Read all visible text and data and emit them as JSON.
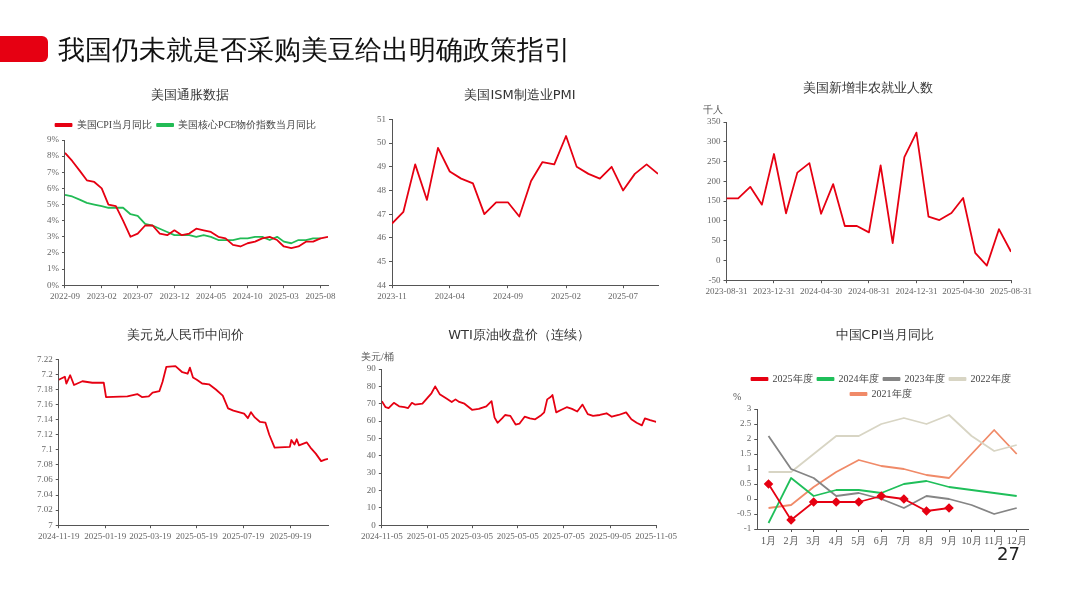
{
  "chart_data": [
    {
      "type": "other",
      "title": "我国仍未就是否采购美豆给出明确政策指引",
      "annotations": [
        "27"
      ]
    },
    {
      "type": "line",
      "title": "美国通胀数据",
      "legend": "top",
      "x": [
        "2022-09",
        "2022-10",
        "2022-11",
        "2022-12",
        "2023-01",
        "2023-02",
        "2023-03",
        "2023-04",
        "2023-05",
        "2023-06",
        "2023-07",
        "2023-08",
        "2023-09",
        "2023-10",
        "2023-11",
        "2023-12",
        "2024-01",
        "2024-02",
        "2024-03",
        "2024-04",
        "2024-05",
        "2024-06",
        "2024-07",
        "2024-08",
        "2024-09",
        "2024-10",
        "2024-11",
        "2024-12",
        "2025-01",
        "2025-02",
        "2025-03",
        "2025-04",
        "2025-05",
        "2025-06",
        "2025-07",
        "2025-08",
        "2025-09"
      ],
      "xlim": [
        "2022-09",
        "2025-09"
      ],
      "xticks": [
        "2022-09",
        "2023-02",
        "2023-07",
        "2023-12",
        "2024-05",
        "2024-10",
        "2025-03",
        "2025-08"
      ],
      "ylim": [
        0,
        9
      ],
      "yticks": [
        {
          "value": 0,
          "label": "0%"
        },
        {
          "value": 1,
          "label": "1%"
        },
        {
          "value": 2,
          "label": "2%"
        },
        {
          "value": 3,
          "label": "3%"
        },
        {
          "value": 4,
          "label": "4%"
        },
        {
          "value": 5,
          "label": "5%"
        },
        {
          "value": 6,
          "label": "6%"
        },
        {
          "value": 7,
          "label": "7%"
        },
        {
          "value": 8,
          "label": "8%"
        },
        {
          "value": 9,
          "label": "9%"
        }
      ],
      "series": [
        {
          "name": "美国CPI当月同比",
          "color": "#e60012",
          "values": [
            8.2,
            7.7,
            7.1,
            6.5,
            6.4,
            6.0,
            5.0,
            4.9,
            4.0,
            3.0,
            3.2,
            3.7,
            3.7,
            3.2,
            3.1,
            3.4,
            3.1,
            3.2,
            3.5,
            3.4,
            3.3,
            3.0,
            2.9,
            2.5,
            2.4,
            2.6,
            2.7,
            2.9,
            3.0,
            2.8,
            2.4,
            2.3,
            2.4,
            2.7,
            2.7,
            2.9,
            3.0
          ]
        },
        {
          "name": "美国核心PCE物价指数当月同比",
          "color": "#22bb55",
          "values": [
            5.6,
            5.5,
            5.3,
            5.1,
            5.0,
            4.9,
            4.8,
            4.8,
            4.8,
            4.4,
            4.3,
            3.8,
            3.7,
            3.5,
            3.3,
            3.1,
            3.1,
            3.1,
            3.0,
            3.1,
            3.0,
            2.8,
            2.8,
            2.8,
            2.9,
            2.9,
            3.0,
            3.0,
            2.8,
            3.0,
            2.7,
            2.6,
            2.8,
            2.8,
            2.9,
            2.9,
            null
          ]
        }
      ]
    },
    {
      "type": "line",
      "title": "美国ISM制造业PMI",
      "x": [
        "2023-11",
        "2023-12",
        "2024-01",
        "2024-02",
        "2024-03",
        "2024-04",
        "2024-05",
        "2024-06",
        "2024-07",
        "2024-08",
        "2024-09",
        "2024-10",
        "2024-11",
        "2024-12",
        "2025-01",
        "2025-02",
        "2025-03",
        "2025-04",
        "2025-05",
        "2025-06",
        "2025-07",
        "2025-08",
        "2025-09",
        "2025-10"
      ],
      "xlim": [
        "2023-11",
        "2025-10"
      ],
      "xticks": [
        "2023-11",
        "2024-04",
        "2024-09",
        "2025-02",
        "2025-07"
      ],
      "ylim": [
        44,
        51
      ],
      "yticks": [
        44,
        45,
        46,
        47,
        48,
        49,
        50,
        51
      ],
      "color": "#e60012",
      "values": [
        46.6,
        47.1,
        49.1,
        47.6,
        49.8,
        48.8,
        48.5,
        48.3,
        47.0,
        47.5,
        47.5,
        46.9,
        48.4,
        49.2,
        49.1,
        50.3,
        49.0,
        48.7,
        48.5,
        49.0,
        48.0,
        48.7,
        49.1,
        48.7
      ]
    },
    {
      "type": "line",
      "title": "美国新增非农就业人数",
      "ylabel": "千人",
      "x": [
        "2023-08-31",
        "2023-09-30",
        "2023-10-31",
        "2023-11-30",
        "2023-12-31",
        "2024-01-31",
        "2024-02-29",
        "2024-03-31",
        "2024-04-30",
        "2024-05-31",
        "2024-06-30",
        "2024-07-31",
        "2024-08-31",
        "2024-09-30",
        "2024-10-31",
        "2024-11-30",
        "2024-12-31",
        "2025-01-31",
        "2025-02-28",
        "2025-03-31",
        "2025-04-30",
        "2025-05-31",
        "2025-06-30",
        "2025-07-31",
        "2025-08-31"
      ],
      "xlim": [
        "2023-08-31",
        "2025-08-31"
      ],
      "xticks": [
        "2023-08-31",
        "2023-12-31",
        "2024-04-30",
        "2024-08-31",
        "2024-12-31",
        "2025-04-30",
        "2025-08-31"
      ],
      "ylim": [
        -50,
        350
      ],
      "yticks": [
        -50,
        0,
        50,
        100,
        150,
        200,
        250,
        300,
        350
      ],
      "color": "#e60012",
      "values": [
        157,
        157,
        186,
        141,
        269,
        119,
        222,
        246,
        118,
        193,
        87,
        87,
        71,
        240,
        44,
        261,
        323,
        111,
        102,
        120,
        158,
        19,
        -13,
        79,
        22
      ]
    },
    {
      "type": "line",
      "title": "美元兑人民币中间价",
      "x": [
        "2024-11-19",
        "2024-11-27",
        "2024-11-29",
        "2024-12-04",
        "2024-12-09",
        "2024-12-20",
        "2025-01-02",
        "2025-01-17",
        "2025-01-20",
        "2025-02-17",
        "2025-03-02",
        "2025-03-08",
        "2025-03-17",
        "2025-03-22",
        "2025-03-31",
        "2025-04-04",
        "2025-04-09",
        "2025-04-21",
        "2025-04-30",
        "2025-05-07",
        "2025-05-10",
        "2025-05-14",
        "2025-05-19",
        "2025-05-26",
        "2025-06-04",
        "2025-06-13",
        "2025-06-22",
        "2025-06-29",
        "2025-07-06",
        "2025-07-13",
        "2025-07-20",
        "2025-07-25",
        "2025-07-29",
        "2025-08-03",
        "2025-08-10",
        "2025-08-17",
        "2025-08-22",
        "2025-08-29",
        "2025-09-18",
        "2025-09-20",
        "2025-09-24",
        "2025-09-27",
        "2025-09-30",
        "2025-10-10",
        "2025-10-15",
        "2025-10-22",
        "2025-10-29",
        "2025-11-03",
        "2025-11-07"
      ],
      "xlim": [
        "2024-11-19",
        "2025-11-07"
      ],
      "xticks": [
        "2024-11-19",
        "2025-01-19",
        "2025-03-19",
        "2025-05-19",
        "2025-07-19",
        "2025-09-19"
      ],
      "ylim": [
        7,
        7.22
      ],
      "yticks": [
        7,
        7.02,
        7.04,
        7.06,
        7.08,
        7.1,
        7.12,
        7.14,
        7.16,
        7.18,
        7.2,
        7.22
      ],
      "color": "#e60012",
      "values": [
        7.193,
        7.197,
        7.188,
        7.199,
        7.186,
        7.191,
        7.189,
        7.189,
        7.17,
        7.171,
        7.174,
        7.17,
        7.171,
        7.176,
        7.178,
        7.19,
        7.21,
        7.211,
        7.203,
        7.201,
        7.209,
        7.196,
        7.193,
        7.188,
        7.187,
        7.18,
        7.172,
        7.155,
        7.152,
        7.15,
        7.148,
        7.142,
        7.15,
        7.143,
        7.137,
        7.136,
        7.12,
        7.103,
        7.104,
        7.113,
        7.107,
        7.114,
        7.106,
        7.11,
        7.103,
        7.095,
        7.085,
        7.087,
        7.088
      ]
    },
    {
      "type": "line",
      "title": "WTI原油收盘价（连续）",
      "ylabel": "美元/桶",
      "x": [
        "2024-11-05",
        "2024-11-10",
        "2024-11-14",
        "2024-11-21",
        "2024-11-28",
        "2024-12-05",
        "2024-12-10",
        "2024-12-15",
        "2024-12-19",
        "2024-12-29",
        "2025-01-05",
        "2025-01-10",
        "2025-01-15",
        "2025-01-21",
        "2025-01-30",
        "2025-02-06",
        "2025-02-11",
        "2025-02-16",
        "2025-02-23",
        "2025-03-05",
        "2025-03-14",
        "2025-03-24",
        "2025-03-31",
        "2025-04-04",
        "2025-04-08",
        "2025-04-14",
        "2025-04-18",
        "2025-04-25",
        "2025-05-02",
        "2025-05-07",
        "2025-05-14",
        "2025-05-21",
        "2025-05-28",
        "2025-06-04",
        "2025-06-09",
        "2025-06-13",
        "2025-06-18",
        "2025-06-20",
        "2025-06-25",
        "2025-07-02",
        "2025-07-09",
        "2025-07-16",
        "2025-07-23",
        "2025-07-30",
        "2025-08-06",
        "2025-08-13",
        "2025-08-22",
        "2025-08-31",
        "2025-09-07",
        "2025-09-16",
        "2025-09-26",
        "2025-10-03",
        "2025-10-10",
        "2025-10-17",
        "2025-10-21",
        "2025-10-28",
        "2025-11-05"
      ],
      "xlim": [
        "2024-11-05",
        "2025-11-05"
      ],
      "xticks": [
        "2024-11-05",
        "2025-01-05",
        "2025-03-05",
        "2025-05-05",
        "2025-07-05",
        "2025-09-05",
        "2025-11-05"
      ],
      "ylim": [
        0,
        90
      ],
      "yticks": [
        0,
        10,
        20,
        30,
        40,
        50,
        60,
        70,
        80,
        90
      ],
      "color": "#e60012",
      "values": [
        71.5,
        68,
        67.5,
        70.5,
        68.5,
        68,
        67.5,
        70.5,
        69.5,
        70,
        73.5,
        76,
        80,
        75.5,
        73,
        71,
        72.5,
        71,
        70,
        66.5,
        67,
        68.5,
        71.5,
        62,
        59,
        61.5,
        63.5,
        63,
        58,
        58.5,
        62.5,
        61.5,
        61,
        63,
        65,
        72.5,
        74,
        75,
        65,
        66.5,
        68,
        67,
        65.5,
        69.5,
        64,
        63,
        63.5,
        64.5,
        62.5,
        63.5,
        65,
        61,
        59,
        57.5,
        61.5,
        60.5,
        59.5
      ]
    },
    {
      "type": "line",
      "title": "中国CPI当月同比",
      "ylabel": "%",
      "legend": "top",
      "categories": [
        "1月",
        "2月",
        "3月",
        "4月",
        "5月",
        "6月",
        "7月",
        "8月",
        "9月",
        "10月",
        "11月",
        "12月"
      ],
      "ylim": [
        -1,
        3
      ],
      "yticks": [
        -1,
        -0.5,
        0,
        0.5,
        1,
        1.5,
        2,
        2.5,
        3
      ],
      "series": [
        {
          "name": "2025年度",
          "color": "#e60012",
          "marker": "diamond",
          "values": [
            0.5,
            -0.7,
            -0.1,
            -0.1,
            -0.1,
            0.1,
            0.0,
            -0.4,
            -0.3,
            null,
            null,
            null
          ]
        },
        {
          "name": "2024年度",
          "color": "#1fbf5a",
          "values": [
            -0.8,
            0.7,
            0.1,
            0.3,
            0.3,
            0.2,
            0.5,
            0.6,
            0.4,
            0.3,
            0.2,
            0.1
          ]
        },
        {
          "name": "2023年度",
          "color": "#858585",
          "values": [
            2.1,
            1.0,
            0.7,
            0.1,
            0.2,
            0.0,
            -0.3,
            0.1,
            0.0,
            -0.2,
            -0.5,
            -0.3
          ]
        },
        {
          "name": "2022年度",
          "color": "#d8d5c4",
          "values": [
            0.9,
            0.9,
            1.5,
            2.1,
            2.1,
            2.5,
            2.7,
            2.5,
            2.8,
            2.1,
            1.6,
            1.8
          ]
        },
        {
          "name": "2021年度",
          "color": "#f08a68",
          "values": [
            -0.3,
            -0.2,
            0.4,
            0.9,
            1.3,
            1.1,
            1.0,
            0.8,
            0.7,
            1.5,
            2.3,
            1.5
          ]
        }
      ]
    }
  ]
}
